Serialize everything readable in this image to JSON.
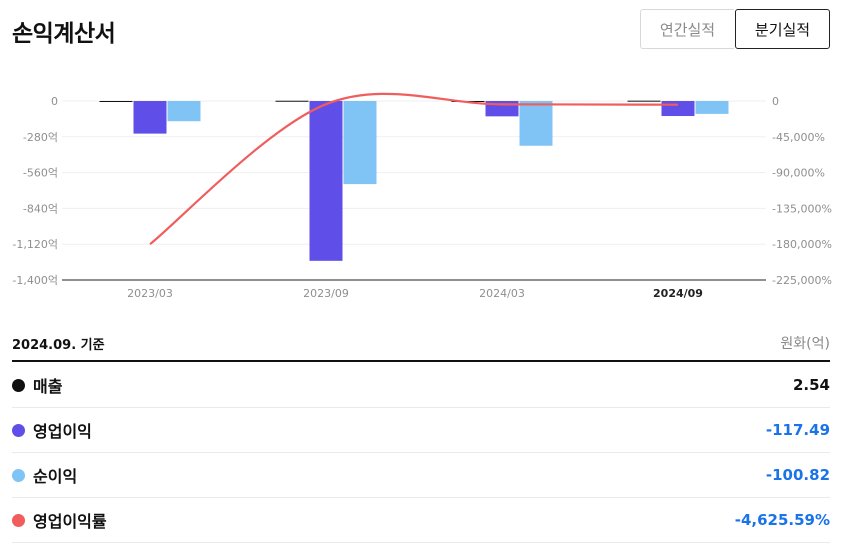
{
  "header": {
    "title": "손익계산서",
    "toggle_annual": "연간실적",
    "toggle_quarterly": "분기실적"
  },
  "chart_data": {
    "type": "bar",
    "categories": [
      "2023/03",
      "2023/09",
      "2024/03",
      "2024/09"
    ],
    "active_category": "2024/09",
    "series": [
      {
        "name": "매출",
        "type": "bar",
        "axis": "left",
        "values": [
          0,
          2,
          0,
          2.54
        ]
      },
      {
        "name": "영업이익",
        "type": "bar",
        "axis": "left",
        "values": [
          -255,
          -1250,
          -120,
          -117.49
        ]
      },
      {
        "name": "순이익",
        "type": "bar",
        "axis": "left",
        "values": [
          -158,
          -650,
          -350,
          -100.82
        ]
      },
      {
        "name": "영업이익률",
        "type": "line",
        "axis": "right",
        "values": [
          -180000,
          -4000,
          -4200,
          -4625.59
        ]
      }
    ],
    "left_axis": {
      "ticks": [
        "0",
        "-280억",
        "-560억",
        "-840억",
        "-1,120억",
        "-1,400억"
      ],
      "ylim": [
        -1400,
        0
      ]
    },
    "right_axis": {
      "ticks": [
        "0",
        "-45,000%",
        "-90,000%",
        "-135,000%",
        "-180,000%",
        "-225,000%"
      ],
      "ylim": [
        -225000,
        0
      ]
    },
    "grid": true
  },
  "summary": {
    "basis": "2024.09. 기준",
    "unit": "원화(억)",
    "items": [
      {
        "label": "매출",
        "value": "2.54",
        "color": "#111111",
        "value_color": "#111111"
      },
      {
        "label": "영업이익",
        "value": "-117.49",
        "color": "#5f4fe8",
        "value_color": "#1a73e8"
      },
      {
        "label": "순이익",
        "value": "-100.82",
        "color": "#80c3f5",
        "value_color": "#1a73e8"
      },
      {
        "label": "영업이익률",
        "value": "-4,625.59%",
        "color": "#f05d5d",
        "value_color": "#1a73e8"
      }
    ]
  }
}
